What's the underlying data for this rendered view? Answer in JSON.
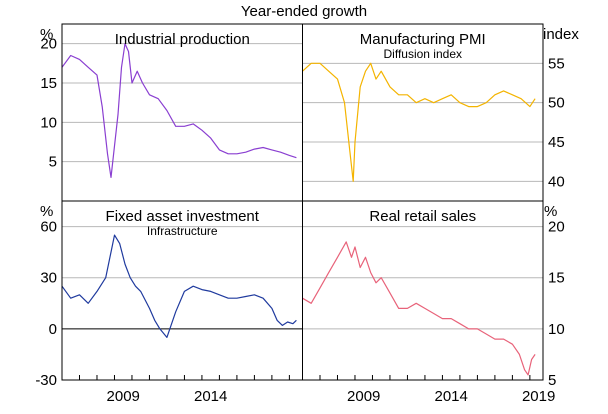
{
  "figure": {
    "title": "Year-ended growth"
  },
  "x_axis": {
    "tick_labels": [
      "2009",
      "2014",
      "2019"
    ]
  },
  "chart_data": [
    {
      "type": "line",
      "title": "Industrial production",
      "subtitle": "",
      "unit": "%",
      "axis_side": "left",
      "ylim": [
        0,
        22.5
      ],
      "yticks": [
        5,
        10,
        15,
        20
      ],
      "color": "#8a3fd1",
      "x": [
        2006.0,
        2006.5,
        2007.0,
        2007.5,
        2008.0,
        2008.3,
        2008.6,
        2008.8,
        2009.0,
        2009.2,
        2009.4,
        2009.6,
        2009.8,
        2010.0,
        2010.3,
        2010.6,
        2011.0,
        2011.5,
        2012.0,
        2012.5,
        2013.0,
        2013.5,
        2014.0,
        2014.5,
        2015.0,
        2015.5,
        2016.0,
        2016.5,
        2017.0,
        2017.5,
        2018.0,
        2018.5,
        2019.0,
        2019.4
      ],
      "values": [
        17,
        18.5,
        18,
        17,
        16,
        12,
        6,
        3,
        7,
        11,
        17,
        20,
        19,
        15,
        16.5,
        15,
        13.5,
        13,
        11.5,
        9.5,
        9.5,
        9.8,
        9,
        8,
        6.5,
        6,
        6,
        6.2,
        6.6,
        6.8,
        6.5,
        6.2,
        5.8,
        5.5
      ]
    },
    {
      "type": "line",
      "title": "Manufacturing PMI",
      "subtitle": "Diffusion index",
      "unit": "index",
      "axis_side": "right",
      "ylim": [
        37.5,
        60
      ],
      "yticks": [
        40,
        45,
        50,
        55
      ],
      "color": "#f4b400",
      "x": [
        2006.0,
        2006.5,
        2007.0,
        2007.5,
        2008.0,
        2008.4,
        2008.7,
        2008.9,
        2009.0,
        2009.3,
        2009.6,
        2009.9,
        2010.2,
        2010.5,
        2011.0,
        2011.5,
        2012.0,
        2012.5,
        2013.0,
        2013.5,
        2014.0,
        2014.5,
        2015.0,
        2015.5,
        2016.0,
        2016.5,
        2017.0,
        2017.5,
        2018.0,
        2018.5,
        2019.0,
        2019.3
      ],
      "values": [
        54,
        55,
        55,
        54,
        53,
        50,
        44,
        40,
        45,
        52,
        54,
        55,
        53,
        54,
        52,
        51,
        51,
        50,
        50.5,
        50,
        50.5,
        51,
        50,
        49.5,
        49.5,
        50,
        51,
        51.5,
        51,
        50.5,
        49.5,
        50.5
      ]
    },
    {
      "type": "line",
      "title": "Fixed asset investment",
      "subtitle": "Infrastructure",
      "unit": "%",
      "axis_side": "left",
      "ylim": [
        -30,
        75
      ],
      "yticks": [
        -30,
        0,
        30,
        60
      ],
      "color": "#1f3a9e",
      "x": [
        2006.0,
        2006.5,
        2007.0,
        2007.5,
        2008.0,
        2008.5,
        2008.8,
        2009.0,
        2009.3,
        2009.6,
        2009.9,
        2010.2,
        2010.5,
        2011.0,
        2011.3,
        2011.6,
        2012.0,
        2012.5,
        2013.0,
        2013.5,
        2014.0,
        2014.5,
        2015.0,
        2015.5,
        2016.0,
        2016.5,
        2017.0,
        2017.5,
        2018.0,
        2018.3,
        2018.6,
        2018.9,
        2019.2,
        2019.4
      ],
      "values": [
        25,
        18,
        20,
        15,
        22,
        30,
        45,
        55,
        50,
        38,
        30,
        25,
        22,
        12,
        5,
        0,
        -5,
        10,
        22,
        25,
        23,
        22,
        20,
        18,
        18,
        19,
        20,
        18,
        12,
        5,
        2,
        4,
        3,
        5
      ]
    },
    {
      "type": "line",
      "title": "Real retail sales",
      "subtitle": "",
      "unit": "%",
      "axis_side": "right",
      "ylim": [
        5,
        22.5
      ],
      "yticks": [
        5,
        10,
        15,
        20
      ],
      "color": "#e8637a",
      "x": [
        2006.0,
        2006.5,
        2007.0,
        2007.5,
        2008.0,
        2008.5,
        2008.8,
        2009.0,
        2009.3,
        2009.6,
        2009.9,
        2010.2,
        2010.5,
        2011.0,
        2011.5,
        2012.0,
        2012.5,
        2013.0,
        2013.5,
        2014.0,
        2014.5,
        2015.0,
        2015.5,
        2016.0,
        2016.5,
        2017.0,
        2017.5,
        2018.0,
        2018.4,
        2018.7,
        2018.9,
        2019.1,
        2019.3
      ],
      "values": [
        13,
        12.5,
        14,
        15.5,
        17,
        18.5,
        17,
        18,
        16,
        17,
        15.5,
        14.5,
        15,
        13.5,
        12,
        12,
        12.5,
        12,
        11.5,
        11,
        11,
        10.5,
        10,
        10,
        9.5,
        9,
        9,
        8.5,
        7.5,
        6,
        5.5,
        7,
        7.5
      ]
    }
  ]
}
